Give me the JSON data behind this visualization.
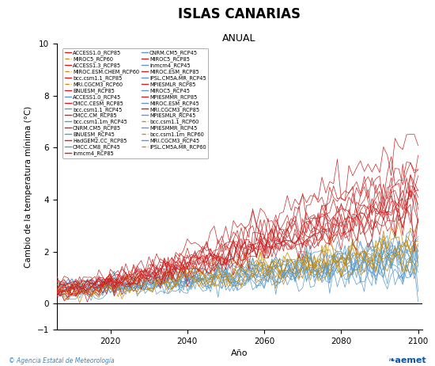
{
  "title": "ISLAS CANARIAS",
  "subtitle": "ANUAL",
  "xlabel": "Año",
  "ylabel": "Cambio de la temperatura mínima (°C)",
  "xlim": [
    2006,
    2101
  ],
  "ylim": [
    -1,
    10
  ],
  "yticks": [
    -1,
    0,
    2,
    4,
    6,
    8,
    10
  ],
  "xticks": [
    2020,
    2040,
    2060,
    2080,
    2100
  ],
  "footer_left": "© Agencia Estatal de Meteorología",
  "rcp85_models": [
    "ACCESS1.0_RCP85",
    "ACCESS1.3_RCP85",
    "bcc.csm1.1_RCP85",
    "BNUESM_RCP85",
    "CMCC.CESM_RCP85",
    "CMCC.CM_RCP85",
    "CNRM.CM5_RCP85",
    "HadGEM2.CC_RCP85",
    "lnmcm4_RCP85",
    "MIROC5_RCP85",
    "MIROC.ESM_RCP85",
    "MPIESMLR_RCP85",
    "MPIESMMR_RCP85",
    "MRI.CGCM3_RCP85"
  ],
  "rcp60_models": [
    "bcc.csm1.1_RCP60",
    "bcc.csm1.1m_RCP60",
    "IPSL.CM5A.MR_RCP60",
    "MIROC5_RCP60",
    "MIROC.ESM.CHEM_RCP60",
    "MRI.CGCM3_RCP60"
  ],
  "rcp45_models": [
    "ACCESS1.0_RCP45",
    "bcc.csm1.1_RCP45",
    "bcc.csm1.1m_RCP45",
    "BNUESM_RCP45",
    "CMCC.CM8_RCP45",
    "CNRM.CM5_RCP45",
    "lnmcm4_RCP45",
    "IPSL.CM5A.MR_RCP45",
    "MIROC5_RCP45",
    "MIROC.ESM_RCP45",
    "MPIESMLR_RCP45",
    "MPIESMMR_RCP45",
    "MRI.CGCM3_RCP45"
  ],
  "color_rcp85": "#CC2222",
  "color_rcp60": "#CC8800",
  "color_rcp45": "#5599CC",
  "background": "#FFFFFF",
  "legend_fontsize": 4.8,
  "title_fontsize": 12,
  "subtitle_fontsize": 9,
  "axis_fontsize": 8,
  "ylabel_fontsize": 7.5
}
